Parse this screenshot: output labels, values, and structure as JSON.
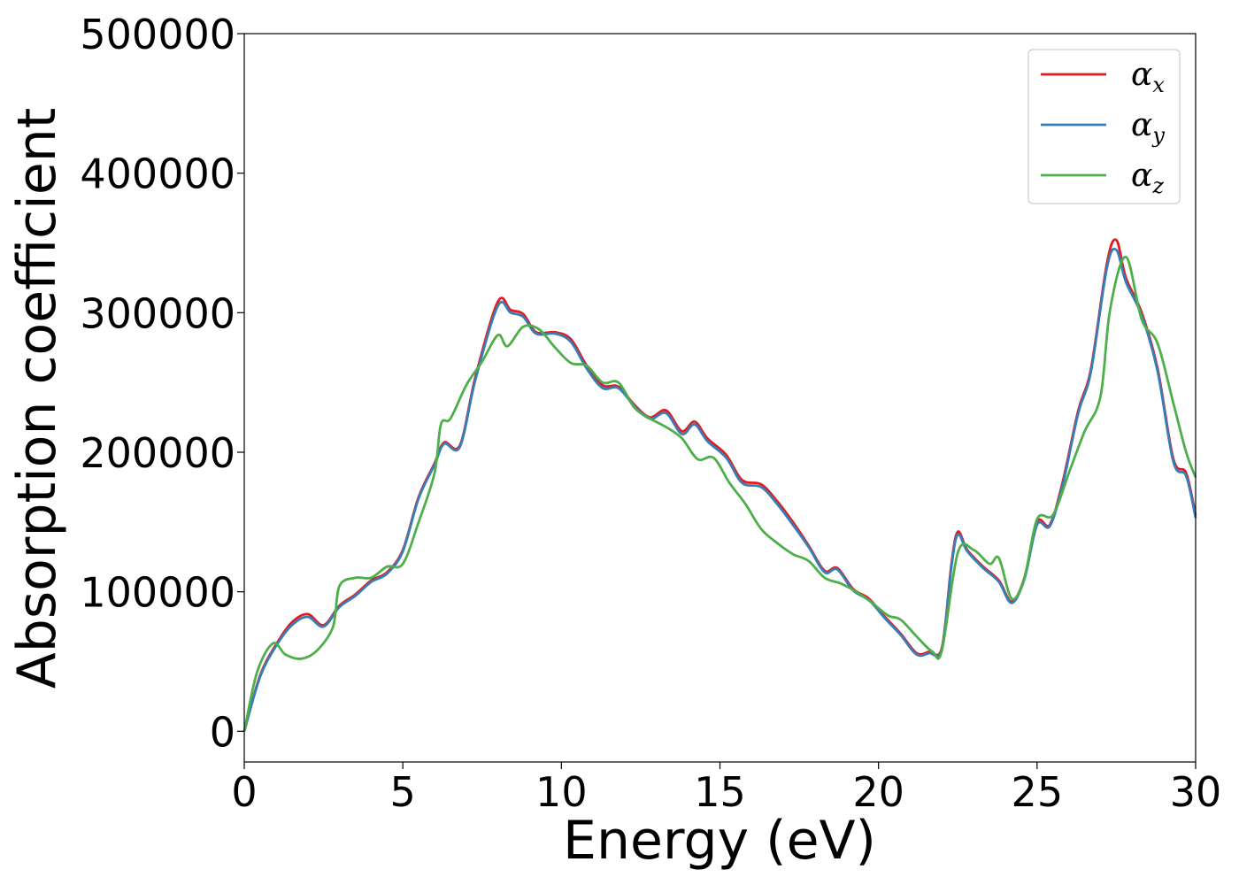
{
  "chart_data": {
    "type": "line",
    "xlabel": "Energy (eV)",
    "ylabel": "Absorption coefficient",
    "xlim": [
      0,
      30
    ],
    "ylim": [
      -22000,
      500000
    ],
    "xticks": [
      0,
      5,
      10,
      15,
      20,
      25,
      30
    ],
    "xtick_labels": [
      "0",
      "5",
      "10",
      "15",
      "20",
      "25",
      "30"
    ],
    "yticks": [
      0,
      100000,
      200000,
      300000,
      400000,
      500000
    ],
    "ytick_labels": [
      "0",
      "100000",
      "200000",
      "300000",
      "400000",
      "500000"
    ],
    "grid": false,
    "legend_position": "top-right",
    "series": [
      {
        "name": "α",
        "subscript": "x",
        "color": "#e41a1c",
        "x": [
          0,
          0.5,
          1.0,
          1.5,
          2.0,
          2.5,
          3.0,
          3.5,
          4.0,
          4.5,
          5.0,
          5.5,
          6.0,
          6.3,
          6.8,
          7.3,
          8.0,
          8.4,
          8.8,
          9.2,
          9.8,
          10.3,
          10.8,
          11.3,
          11.8,
          12.3,
          12.8,
          13.3,
          13.8,
          14.2,
          14.6,
          15.2,
          15.7,
          16.3,
          16.8,
          17.3,
          17.8,
          18.3,
          18.7,
          19.2,
          19.7,
          20.2,
          20.7,
          21.2,
          21.6,
          22.0,
          22.3,
          22.5,
          22.8,
          23.3,
          23.8,
          24.2,
          24.6,
          25.0,
          25.4,
          25.8,
          26.3,
          26.7,
          27.2,
          27.5,
          27.8,
          28.3,
          28.8,
          29.3,
          29.7,
          30.0
        ],
        "y": [
          0,
          40000,
          62000,
          78000,
          84000,
          76000,
          90000,
          98000,
          108000,
          114000,
          130000,
          168000,
          192000,
          207000,
          205000,
          255000,
          308000,
          302000,
          299000,
          286000,
          286000,
          281000,
          262000,
          248000,
          247000,
          234000,
          225000,
          230000,
          215000,
          222000,
          210000,
          198000,
          180000,
          177000,
          165000,
          150000,
          133000,
          115000,
          117000,
          102000,
          95000,
          82000,
          70000,
          56000,
          57000,
          60000,
          120000,
          143000,
          130000,
          118000,
          108000,
          93000,
          110000,
          150000,
          148000,
          178000,
          230000,
          260000,
          335000,
          352000,
          325000,
          300000,
          260000,
          195000,
          185000,
          155000
        ]
      },
      {
        "name": "α",
        "subscript": "y",
        "color": "#377eb8",
        "x": [
          0,
          0.5,
          1.0,
          1.5,
          2.0,
          2.5,
          3.0,
          3.5,
          4.0,
          4.5,
          5.0,
          5.5,
          6.0,
          6.3,
          6.8,
          7.3,
          8.0,
          8.4,
          8.8,
          9.2,
          9.8,
          10.3,
          10.8,
          11.3,
          11.8,
          12.3,
          12.8,
          13.3,
          13.8,
          14.2,
          14.6,
          15.2,
          15.7,
          16.3,
          16.8,
          17.3,
          17.8,
          18.3,
          18.7,
          19.2,
          19.7,
          20.2,
          20.7,
          21.2,
          21.6,
          22.0,
          22.3,
          22.5,
          22.8,
          23.3,
          23.8,
          24.2,
          24.6,
          25.0,
          25.4,
          25.8,
          26.3,
          26.7,
          27.2,
          27.5,
          27.8,
          28.3,
          28.8,
          29.3,
          29.7,
          30.0
        ],
        "y": [
          0,
          39000,
          61000,
          76000,
          82000,
          75000,
          89000,
          97000,
          107000,
          113000,
          129000,
          167000,
          191000,
          206000,
          204000,
          253000,
          305000,
          300000,
          297000,
          285000,
          285000,
          279000,
          260000,
          246000,
          246000,
          233000,
          224000,
          228000,
          213000,
          220000,
          208000,
          196000,
          178000,
          175000,
          163000,
          148000,
          132000,
          114000,
          116000,
          101000,
          94000,
          81000,
          69000,
          55000,
          56000,
          59000,
          118000,
          141000,
          129000,
          117000,
          107000,
          92000,
          109000,
          148000,
          147000,
          176000,
          228000,
          258000,
          332000,
          345000,
          322000,
          298000,
          258000,
          193000,
          183000,
          153000
        ]
      },
      {
        "name": "α",
        "subscript": "z",
        "color": "#4daf4a",
        "x": [
          0,
          0.4,
          0.9,
          1.3,
          1.8,
          2.3,
          2.8,
          3.0,
          3.5,
          4.0,
          4.5,
          5.0,
          5.5,
          6.0,
          6.2,
          6.5,
          7.0,
          7.5,
          8.0,
          8.3,
          8.8,
          9.3,
          9.8,
          10.3,
          10.8,
          11.3,
          11.8,
          12.3,
          12.8,
          13.3,
          13.8,
          14.3,
          14.8,
          15.3,
          15.8,
          16.3,
          16.8,
          17.3,
          17.8,
          18.3,
          18.8,
          19.3,
          19.8,
          20.3,
          20.7,
          21.2,
          21.7,
          22.0,
          22.5,
          23.0,
          23.5,
          23.8,
          24.2,
          24.6,
          25.0,
          25.5,
          26.0,
          26.5,
          27.0,
          27.3,
          27.8,
          28.3,
          28.8,
          29.3,
          29.7,
          30.0
        ],
        "y": [
          0,
          42000,
          63000,
          55000,
          52000,
          58000,
          75000,
          104000,
          110000,
          110000,
          118000,
          120000,
          150000,
          185000,
          220000,
          224000,
          248000,
          265000,
          284000,
          276000,
          290000,
          288000,
          275000,
          264000,
          262000,
          250000,
          250000,
          232000,
          224000,
          218000,
          210000,
          195000,
          196000,
          178000,
          163000,
          145000,
          135000,
          127000,
          122000,
          110000,
          106000,
          100000,
          92000,
          83000,
          80000,
          68000,
          57000,
          58000,
          128000,
          130000,
          120000,
          124000,
          95000,
          110000,
          152000,
          155000,
          185000,
          215000,
          240000,
          302000,
          340000,
          295000,
          278000,
          235000,
          200000,
          182000
        ]
      }
    ]
  }
}
